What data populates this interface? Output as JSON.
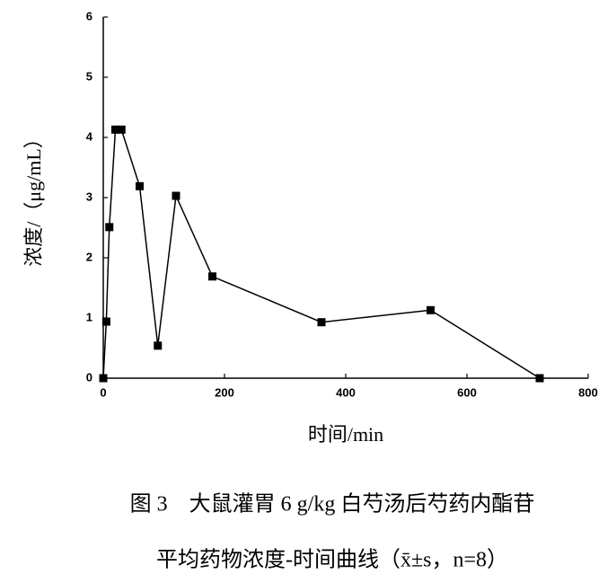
{
  "chart_data": {
    "type": "line",
    "x_label": "时间/min",
    "y_label": "浓度/（μg/mL）",
    "caption": [
      "图 3　大鼠灌胃 6 g/kg 白芍汤后芍药内酯苷",
      "平均药物浓度-时间曲线（x̄±s，n=8）"
    ],
    "x": [
      0,
      5,
      10,
      20,
      30,
      60,
      90,
      120,
      180,
      360,
      540,
      720
    ],
    "series": [
      {
        "color": "#000000",
        "values": [
          0,
          0.94,
          2.51,
          4.13,
          4.13,
          3.19,
          0.54,
          3.03,
          1.69,
          0.93,
          1.13,
          0
        ]
      }
    ],
    "xlim": [
      0,
      800
    ],
    "xticks": [
      0,
      200,
      400,
      600,
      800
    ],
    "ylim": [
      0,
      6
    ],
    "yticks": [
      0,
      1,
      2,
      3,
      4,
      5,
      6
    ]
  }
}
